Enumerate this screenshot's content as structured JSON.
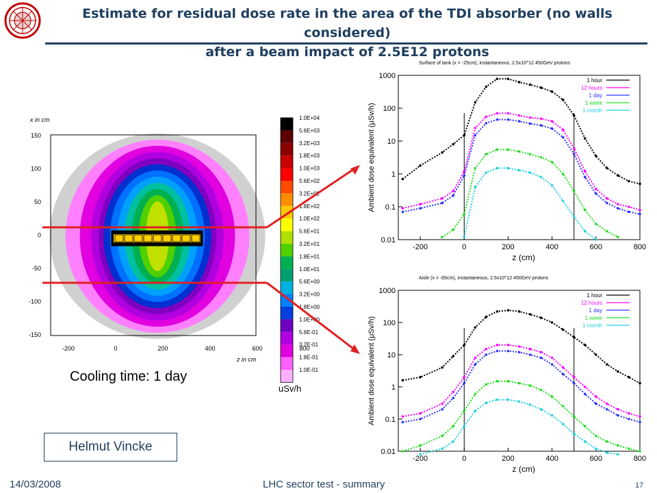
{
  "title_line1": "Estimate for residual dose rate in the area of the TDI absorber (no walls considered)",
  "title_line2": "after a beam impact of 2.5E12 protons",
  "footer": {
    "date": "14/03/2008",
    "center": "LHC sector test - summary",
    "page": "17"
  },
  "author": "Helmut Vincke",
  "map": {
    "caption": "Cooling time: 1 day",
    "x_label": "z in cm",
    "y_label": "x in cm",
    "x_ticks": [
      "-200",
      "0",
      "200",
      "400",
      "600",
      "800"
    ],
    "y_ticks": [
      "150",
      "100",
      "50",
      "0",
      "-50",
      "-100",
      "-150"
    ],
    "unit": "uSv/h",
    "colorbar_labels": [
      "1.0E+04",
      "5.6E+03",
      "3.2E+03",
      "1.8E+03",
      "1.0E+03",
      "5.6E+02",
      "3.2E+02",
      "1.8E+02",
      "1.0E+02",
      "5.6E+01",
      "3.2E+01",
      "1.8E+01",
      "1.0E+01",
      "5.6E+00",
      "3.2E+00",
      "1.8E+00",
      "1.0E+00",
      "5.6E-01",
      "3.2E-01",
      "1.8E-01",
      "1.0E-01"
    ],
    "colorbar_colors": [
      "#000000",
      "#5a0000",
      "#8b0000",
      "#c80000",
      "#ff0000",
      "#ff4a00",
      "#ff8c00",
      "#ffc800",
      "#ffff00",
      "#b0e000",
      "#50d000",
      "#00b050",
      "#00a070",
      "#00b0e0",
      "#0080ff",
      "#0040e0",
      "#7000c0",
      "#b000e0",
      "#e000e0",
      "#ff60ff",
      "#ffb0ff"
    ]
  },
  "chart_data": [
    {
      "type": "scatter",
      "title": "Surface of tank (x = -25cm), instantaneous, 2.5x10^12 450GeV protons",
      "xlabel": "z   (cm)",
      "ylabel": "Ambient dose equivalent   (μSv/h)",
      "x_ticks": [
        "-200",
        "0",
        "200",
        "400",
        "600",
        "800"
      ],
      "y_ticks": [
        "1000",
        "100",
        "10",
        "1",
        "0.1",
        "0.01"
      ],
      "xlim": [
        -300,
        800
      ],
      "ylim": [
        0.01,
        1000
      ],
      "log_y": true,
      "vlines": [
        0,
        500
      ],
      "legend_position": "top-right",
      "series": [
        {
          "name": "1 hour",
          "color": "#000000",
          "x": [
            -280,
            -200,
            -100,
            -50,
            0,
            50,
            100,
            150,
            200,
            250,
            300,
            350,
            400,
            450,
            500,
            550,
            600,
            650,
            700,
            750,
            800
          ],
          "y": [
            0.7,
            1.8,
            4.5,
            8,
            15,
            150,
            450,
            780,
            780,
            620,
            520,
            420,
            320,
            180,
            60,
            12,
            3.5,
            1.5,
            0.9,
            0.6,
            0.5
          ]
        },
        {
          "name": "12 hours",
          "color": "#ff00ff",
          "x": [
            -280,
            -200,
            -100,
            -50,
            0,
            50,
            100,
            150,
            200,
            250,
            300,
            350,
            400,
            450,
            500,
            550,
            600,
            650,
            700,
            750,
            800
          ],
          "y": [
            0.09,
            0.12,
            0.18,
            0.3,
            1.2,
            25,
            55,
            70,
            70,
            60,
            52,
            48,
            40,
            22,
            6,
            1.2,
            0.35,
            0.18,
            0.12,
            0.1,
            0.08
          ]
        },
        {
          "name": "1 day",
          "color": "#3030ff",
          "x": [
            -280,
            -200,
            -100,
            -50,
            0,
            50,
            100,
            150,
            200,
            250,
            300,
            350,
            400,
            450,
            500,
            550,
            600,
            650,
            700,
            750,
            800
          ],
          "y": [
            0.07,
            0.09,
            0.13,
            0.22,
            0.9,
            15,
            35,
            45,
            45,
            40,
            34,
            30,
            24,
            13,
            4,
            0.8,
            0.25,
            0.13,
            0.09,
            0.07,
            0.06
          ]
        },
        {
          "name": "1 week",
          "color": "#20e020",
          "x": [
            -100,
            -50,
            0,
            50,
            100,
            150,
            200,
            250,
            300,
            350,
            400,
            450,
            500,
            550,
            600,
            650,
            700
          ],
          "y": [
            0.012,
            0.02,
            0.06,
            1.5,
            4,
            5.5,
            5.5,
            4.8,
            4,
            3.2,
            2.3,
            1,
            0.3,
            0.08,
            0.03,
            0.018,
            0.012
          ]
        },
        {
          "name": "1 month",
          "color": "#20d0e0",
          "x": [
            0,
            50,
            100,
            150,
            200,
            250,
            300,
            350,
            400,
            450,
            500,
            550,
            600
          ],
          "y": [
            0.012,
            0.4,
            1.1,
            1.5,
            1.5,
            1.3,
            1.1,
            0.8,
            0.45,
            0.15,
            0.05,
            0.018,
            0.01
          ]
        }
      ]
    },
    {
      "type": "scatter",
      "title": "Aisle (x = -65cm), instantaneous, 2.5x10^12 450GeV protons",
      "xlabel": "z   (cm)",
      "ylabel": "Ambient dose equivalent   (μSv/h)",
      "x_ticks": [
        "-200",
        "0",
        "200",
        "400",
        "600",
        "800"
      ],
      "y_ticks": [
        "1000",
        "100",
        "10",
        "1",
        "0.1",
        "0.01"
      ],
      "xlim": [
        -300,
        800
      ],
      "ylim": [
        0.01,
        1000
      ],
      "log_y": true,
      "vlines": [
        0,
        500
      ],
      "legend_position": "top-right",
      "series": [
        {
          "name": "1 hour",
          "color": "#000000",
          "x": [
            -280,
            -200,
            -100,
            -50,
            0,
            50,
            100,
            150,
            200,
            250,
            300,
            350,
            400,
            450,
            500,
            550,
            600,
            650,
            700,
            750,
            800
          ],
          "y": [
            1.6,
            2,
            4,
            9,
            20,
            70,
            150,
            220,
            240,
            220,
            180,
            140,
            100,
            60,
            35,
            20,
            10,
            5,
            3,
            2,
            1.3
          ]
        },
        {
          "name": "12 hours",
          "color": "#ff00ff",
          "x": [
            -280,
            -200,
            -100,
            -50,
            0,
            50,
            100,
            150,
            200,
            250,
            300,
            350,
            400,
            450,
            500,
            550,
            600,
            650,
            700,
            750,
            800
          ],
          "y": [
            0.12,
            0.15,
            0.3,
            0.7,
            2,
            8,
            15,
            20,
            20,
            18,
            15,
            12,
            8,
            4,
            2,
            1,
            0.5,
            0.3,
            0.2,
            0.15,
            0.12
          ]
        },
        {
          "name": "1 day",
          "color": "#3030ff",
          "x": [
            -280,
            -200,
            -100,
            -50,
            0,
            50,
            100,
            150,
            200,
            250,
            300,
            350,
            400,
            450,
            500,
            550,
            600,
            650,
            700,
            750,
            800
          ],
          "y": [
            0.08,
            0.1,
            0.2,
            0.45,
            1.3,
            5,
            10,
            13,
            13,
            12,
            10,
            8,
            5,
            2.5,
            1.3,
            0.6,
            0.3,
            0.2,
            0.13,
            0.1,
            0.08
          ]
        },
        {
          "name": "1 week",
          "color": "#20e020",
          "x": [
            -280,
            -200,
            -100,
            -50,
            0,
            50,
            100,
            150,
            200,
            250,
            300,
            350,
            400,
            450,
            500,
            550,
            600,
            650,
            700,
            750,
            800
          ],
          "y": [
            0.01,
            0.015,
            0.03,
            0.06,
            0.18,
            0.6,
            1.2,
            1.5,
            1.5,
            1.3,
            1.1,
            0.8,
            0.5,
            0.25,
            0.12,
            0.06,
            0.03,
            0.02,
            0.015,
            0.012,
            0.01
          ]
        },
        {
          "name": "1 month",
          "color": "#20d0e0",
          "x": [
            -200,
            -100,
            -50,
            0,
            50,
            100,
            150,
            200,
            250,
            300,
            350,
            400,
            450,
            500,
            550,
            600,
            650,
            700
          ],
          "y": [
            0.008,
            0.012,
            0.02,
            0.06,
            0.18,
            0.32,
            0.4,
            0.4,
            0.35,
            0.28,
            0.2,
            0.13,
            0.07,
            0.035,
            0.02,
            0.012,
            0.009,
            0.008
          ]
        }
      ]
    }
  ]
}
